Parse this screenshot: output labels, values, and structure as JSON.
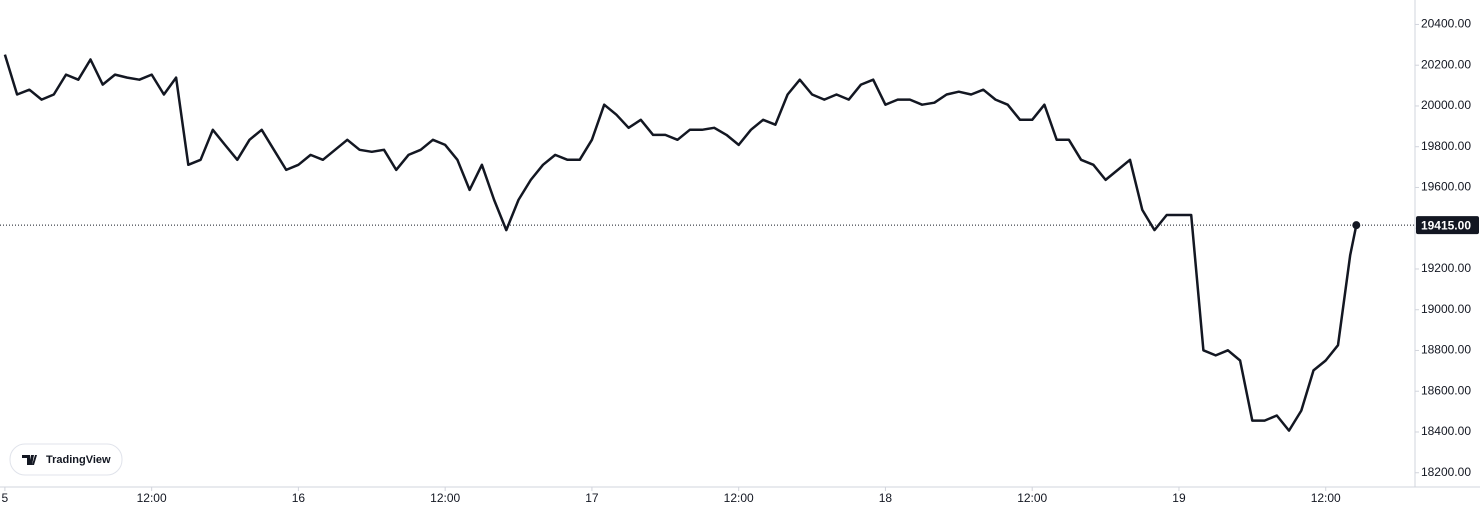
{
  "chart_data": {
    "type": "line",
    "x": [
      0,
      1,
      2,
      3,
      4,
      5,
      6,
      7,
      8,
      9,
      10,
      11,
      12,
      13,
      14,
      15,
      16,
      17,
      18,
      19,
      20,
      21,
      22,
      23,
      24,
      25,
      26,
      27,
      28,
      29,
      30,
      31,
      32,
      33,
      34,
      35,
      36,
      37,
      38,
      39,
      40,
      41,
      42,
      43,
      44,
      45,
      46,
      47,
      48,
      49,
      50,
      51,
      52,
      53,
      54,
      55,
      56,
      57,
      58,
      59,
      60,
      61,
      62,
      63,
      64,
      65,
      66,
      67,
      68,
      69,
      70,
      71,
      72,
      73,
      74,
      75,
      76,
      77,
      78,
      79,
      80,
      81,
      82,
      83,
      84,
      85,
      86,
      87,
      88,
      89,
      90,
      91,
      92,
      93,
      94,
      95,
      96,
      97,
      98,
      99,
      100,
      101,
      102,
      103,
      104,
      105,
      106,
      107,
      108,
      109,
      110,
      110.5
    ],
    "values": [
      20252,
      20056,
      20080,
      20031,
      20056,
      20154,
      20129,
      20228,
      20105,
      20154,
      20139,
      20129,
      20154,
      20056,
      20139,
      19711,
      19736,
      19883,
      19809,
      19736,
      19834,
      19883,
      19785,
      19686,
      19711,
      19760,
      19736,
      19785,
      19834,
      19785,
      19775,
      19785,
      19686,
      19760,
      19785,
      19834,
      19809,
      19736,
      19588,
      19711,
      19539,
      19391,
      19539,
      19637,
      19711,
      19760,
      19736,
      19736,
      19834,
      20006,
      19957,
      19893,
      19932,
      19858,
      19858,
      19834,
      19883,
      19883,
      19893,
      19858,
      19809,
      19883,
      19932,
      19908,
      20056,
      20129,
      20056,
      20031,
      20056,
      20031,
      20105,
      20129,
      20006,
      20031,
      20031,
      20006,
      20016,
      20056,
      20070,
      20056,
      20080,
      20031,
      20006,
      19932,
      19932,
      20006,
      19834,
      19834,
      19736,
      19711,
      19637,
      19686,
      19736,
      19490,
      19391,
      19465,
      19465,
      19465,
      18801,
      18776,
      18801,
      18751,
      18456,
      18456,
      18481,
      18407,
      18505,
      18702,
      18751,
      18826,
      19268,
      19415
    ],
    "color": "#131722",
    "xlim": [
      -0.4,
      115.3
    ],
    "xticks": [
      {
        "value": 0,
        "label": "5"
      },
      {
        "value": 12,
        "label": "12:00"
      },
      {
        "value": 24,
        "label": "16"
      },
      {
        "value": 36,
        "label": "12:00"
      },
      {
        "value": 48,
        "label": "17"
      },
      {
        "value": 60,
        "label": "12:00"
      },
      {
        "value": 72,
        "label": "18"
      },
      {
        "value": 84,
        "label": "12:00"
      },
      {
        "value": 96,
        "label": "19"
      },
      {
        "value": 108,
        "label": "12:00"
      }
    ],
    "ylim": [
      18130,
      20520
    ],
    "yticks": [
      {
        "value": 18200,
        "label": "18200.00"
      },
      {
        "value": 18400,
        "label": "18400.00"
      },
      {
        "value": 18600,
        "label": "18600.00"
      },
      {
        "value": 18800,
        "label": "18800.00"
      },
      {
        "value": 19000,
        "label": "19000.00"
      },
      {
        "value": 19200,
        "label": "19200.00"
      },
      {
        "value": 19400,
        "label": "19400.00"
      },
      {
        "value": 19600,
        "label": "19600.00"
      },
      {
        "value": 19800,
        "label": "19800.00"
      },
      {
        "value": 20000,
        "label": "20000.00"
      },
      {
        "value": 20200,
        "label": "20200.00"
      },
      {
        "value": 20400,
        "label": "20400.00"
      }
    ],
    "grid": false,
    "last_price": {
      "value": 19415,
      "label": "19415.00"
    },
    "watermark": "TradingView"
  }
}
